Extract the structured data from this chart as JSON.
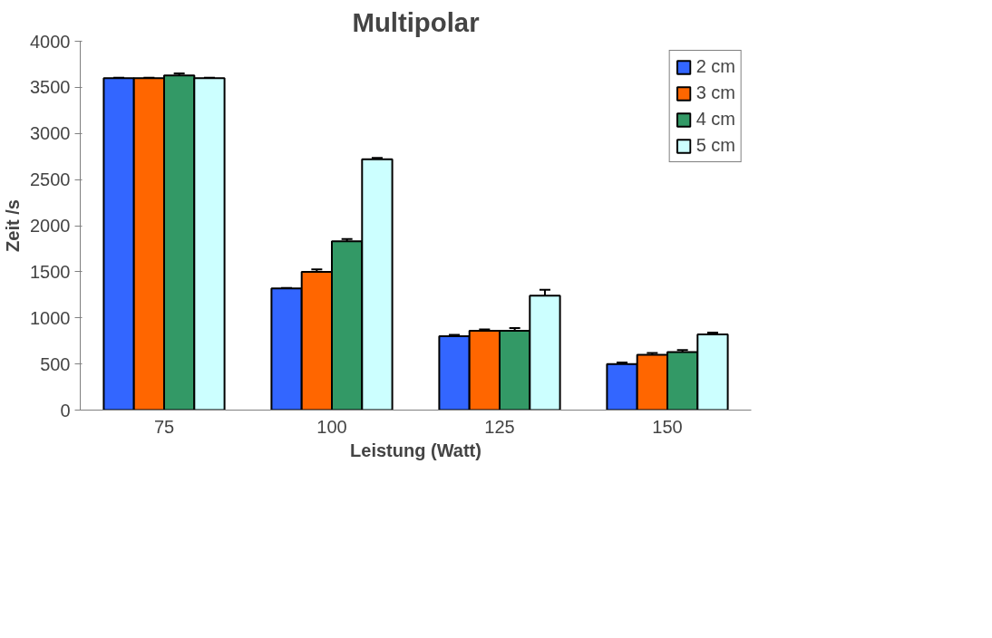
{
  "chart_data": {
    "type": "bar",
    "title": "Multipolar",
    "xlabel": "Leistung (Watt)",
    "ylabel": "Zeit /s",
    "categories": [
      "75",
      "100",
      "125",
      "150"
    ],
    "series": [
      {
        "name": "2 cm",
        "color": "#3366ff",
        "values": [
          3600,
          1320,
          800,
          500
        ],
        "errors": [
          5,
          5,
          15,
          15
        ]
      },
      {
        "name": "3 cm",
        "color": "#ff6600",
        "values": [
          3600,
          1500,
          860,
          600
        ],
        "errors": [
          5,
          25,
          15,
          20
        ]
      },
      {
        "name": "4 cm",
        "color": "#339966",
        "values": [
          3630,
          1830,
          860,
          630
        ],
        "errors": [
          20,
          25,
          30,
          20
        ]
      },
      {
        "name": "5 cm",
        "color": "#ccffff",
        "values": [
          3600,
          2720,
          1240,
          820
        ],
        "errors": [
          5,
          15,
          65,
          20
        ]
      }
    ],
    "ylim": [
      0,
      4000
    ],
    "yticks": [
      0,
      500,
      1000,
      1500,
      2000,
      2500,
      3000,
      3500,
      4000
    ],
    "grid": false,
    "legend": "top right"
  }
}
